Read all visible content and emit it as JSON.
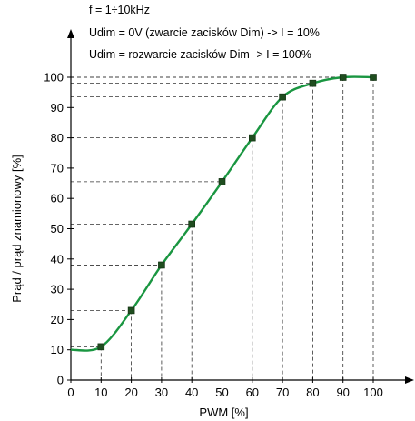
{
  "chart_data": {
    "type": "line",
    "annotations": [
      "f = 1÷10kHz",
      "Udim = 0V (zwarcie zacisków Dim) -> I = 10%",
      "Udim = rozwarcie zacisków Dim -> I = 100%"
    ],
    "xlabel": "PWM [%]",
    "ylabel": "Prąd / prąd znamionowy [%]",
    "xlim": [
      0,
      100
    ],
    "ylim": [
      0,
      100
    ],
    "x_ticks": [
      "0",
      "10",
      "20",
      "30",
      "40",
      "50",
      "60",
      "70",
      "80",
      "90",
      "100"
    ],
    "y_ticks": [
      "0",
      "10",
      "20",
      "30",
      "40",
      "50",
      "60",
      "70",
      "80",
      "90",
      "100"
    ],
    "x": [
      0,
      10,
      20,
      30,
      40,
      50,
      60,
      70,
      80,
      90,
      100
    ],
    "y": [
      10,
      11,
      23,
      38,
      51.5,
      65.5,
      80,
      93.5,
      98,
      100,
      100
    ],
    "markers_x": [
      10,
      20,
      30,
      40,
      50,
      60,
      70,
      80,
      90,
      100
    ],
    "series_color": "#1a9641",
    "marker_color": "#1f4d1f",
    "reference_lines": "dashed",
    "grid": false,
    "legend": "none"
  }
}
